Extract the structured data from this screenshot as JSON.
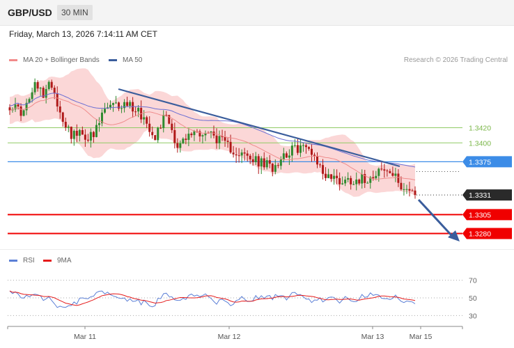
{
  "header": {
    "symbol": "GBP/USD",
    "timeframe": "30 MIN",
    "datetime": "Friday, March 13, 2026 7:14:11 AM CET"
  },
  "legend": {
    "bb_label": "MA 20 + Bollinger Bands",
    "ma50_label": "MA 50",
    "rsi_label": "RSI",
    "rsi_ma_label": "9MA",
    "credit": "Research © 2026 Trading Central"
  },
  "colors": {
    "up": "#2f8a2f",
    "down": "#b01919",
    "bb": "#f9c9c9",
    "ma50": "#6c6fd3",
    "trend": "#3a5d9c",
    "support": "#f00000",
    "resistance_light": "#8fcb64",
    "pivot": "#3c8ce7"
  },
  "chart_data": [
    {
      "type": "candlestick",
      "title": "GBP/USD",
      "ylim": [
        1.3262,
        1.3497
      ],
      "xticks": [
        "Mar 11",
        "Mar 12",
        "Mar 13",
        "Mar 15"
      ],
      "levels": [
        {
          "value": 1.342,
          "label": "1.3420",
          "style": "resistance-light"
        },
        {
          "value": 1.34,
          "label": "1.3400",
          "style": "resistance-light"
        },
        {
          "value": 1.3375,
          "label": "1.3375",
          "style": "pivot"
        },
        {
          "value": 1.3331,
          "label": "1.3331",
          "style": "last"
        },
        {
          "value": 1.3305,
          "label": "1.3305",
          "style": "support"
        },
        {
          "value": 1.328,
          "label": "1.3280",
          "style": "support"
        }
      ],
      "series": [
        {
          "name": "MA 20 + Bollinger Bands"
        },
        {
          "name": "MA 50"
        }
      ]
    },
    {
      "type": "line",
      "ylim": [
        20,
        80
      ],
      "yticks": [
        70,
        50,
        30
      ],
      "series": [
        {
          "name": "RSI"
        },
        {
          "name": "9MA"
        }
      ]
    }
  ]
}
